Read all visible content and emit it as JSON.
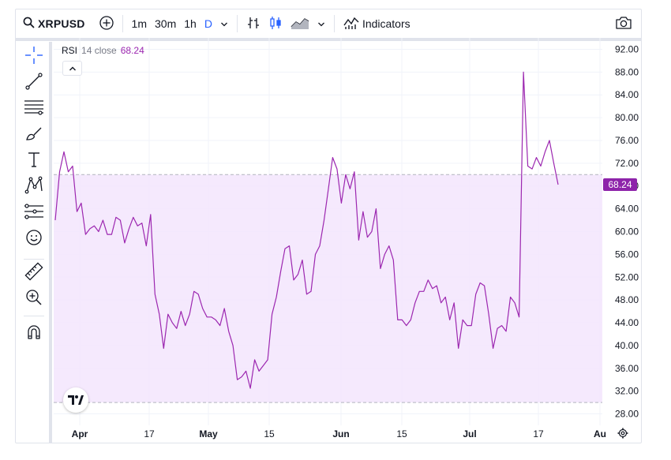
{
  "toolbar": {
    "symbol": "XRPUSD",
    "intervals": [
      "1m",
      "30m",
      "1h",
      "D"
    ],
    "active_interval": "D",
    "indicators_label": "Indicators"
  },
  "icons": {
    "search": "search-icon",
    "add_symbol": "plus-circle-icon",
    "chevron": "chevron-down-icon",
    "bar_style": "bars-icon",
    "candle_style": "candles-icon",
    "area_style": "area-chart-icon",
    "indicators": "indicators-icon",
    "camera": "camera-icon",
    "settings": "gear-icon",
    "brand": "tradingview-logo"
  },
  "tools": [
    "crosshair-icon",
    "trend-line-icon",
    "horizontal-lines-icon",
    "brush-icon",
    "text-icon",
    "pattern-icon",
    "projection-icon",
    "emoji-icon",
    "ruler-icon",
    "zoom-in-icon",
    "magnet-icon"
  ],
  "legend": {
    "name": "RSI",
    "params": "14 close",
    "value": "68.24"
  },
  "last_value_label": "68.24",
  "colors": {
    "line": "#9c27b0",
    "band_fill": "#f3e5fd",
    "accent": "#2962ff",
    "label_bg": "#8e24aa"
  },
  "chart_data": {
    "type": "line",
    "title": "",
    "series": [
      {
        "values": [
          62,
          70.5,
          74,
          70.5,
          71.5,
          63.5,
          65,
          59.5,
          60.5,
          61,
          60,
          62,
          59.5,
          59.5,
          62.5,
          62,
          58,
          60.5,
          62.5,
          61,
          61.5,
          57.5,
          63,
          49,
          45.5,
          39.5,
          45.5,
          44,
          43,
          46,
          43.5,
          45.5,
          49.5,
          49,
          46.5,
          45,
          45,
          44.5,
          43.5,
          46.5,
          42.5,
          40,
          34,
          34.5,
          35.5,
          32.5,
          37.5,
          35.5,
          36.5,
          37.5,
          45.5,
          48.5,
          53,
          57,
          57.5,
          51.5,
          52.5,
          55,
          49,
          49.5,
          56,
          57.5,
          62,
          67.5,
          73,
          71,
          65,
          70,
          67.5,
          70.5,
          58.5,
          63.5,
          59,
          60,
          64,
          53.5,
          56,
          57.5,
          55,
          44.5,
          44.5,
          43.5,
          44.5,
          47.5,
          49.5,
          49.5,
          51.5,
          50,
          50.5,
          47.5,
          48.5,
          44.5,
          47.5,
          39.5,
          44.5,
          43.5,
          43.5,
          49,
          51,
          50.5,
          45.5,
          39.5,
          43,
          43.5,
          42.5,
          48.5,
          47.5,
          45,
          88,
          71.5,
          71,
          73,
          71.5,
          74,
          76,
          72,
          68.24
        ],
        "last": 68.24
      }
    ],
    "x_tick_labels": [
      "Apr",
      "17",
      "May",
      "15",
      "Jun",
      "15",
      "Jul",
      "17",
      "Au"
    ],
    "y_tick_labels": [
      "28.00",
      "32.00",
      "36.00",
      "40.00",
      "44.00",
      "48.00",
      "52.00",
      "56.00",
      "60.00",
      "64.00",
      "68.00",
      "72.00",
      "76.00",
      "80.00",
      "84.00",
      "88.00",
      "92.00"
    ],
    "ylim": [
      26,
      94
    ],
    "band": [
      30,
      70
    ],
    "grid": true
  }
}
